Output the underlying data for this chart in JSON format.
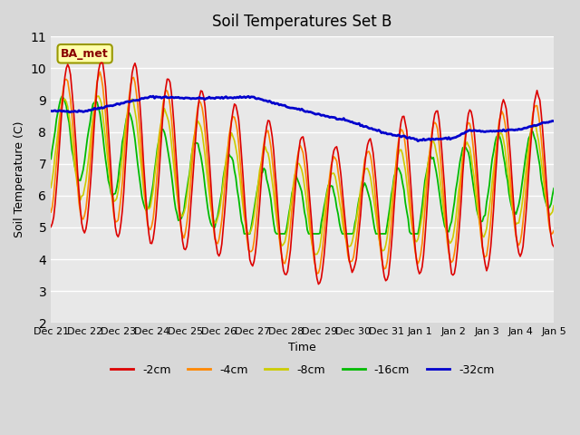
{
  "title": "Soil Temperatures Set B",
  "xlabel": "Time",
  "ylabel": "Soil Temperature (C)",
  "ylim": [
    2.0,
    11.0
  ],
  "yticks": [
    2.0,
    3.0,
    4.0,
    5.0,
    6.0,
    7.0,
    8.0,
    9.0,
    10.0,
    11.0
  ],
  "legend_label": "BA_met",
  "series_colors": {
    "-2cm": "#dd0000",
    "-4cm": "#ff8800",
    "-8cm": "#cccc00",
    "-16cm": "#00bb00",
    "-32cm": "#0000cc"
  },
  "x_labels": [
    "Dec 21",
    "Dec 22",
    "Dec 23",
    "Dec 24",
    "Dec 25",
    "Dec 26",
    "Dec 27",
    "Dec 28",
    "Dec 29",
    "Dec 30",
    "Dec 31",
    "Jan 1",
    "Jan 2",
    "Jan 3",
    "Jan 4",
    "Jan 5"
  ],
  "x_tick_positions": [
    0,
    1,
    2,
    3,
    4,
    5,
    6,
    7,
    8,
    9,
    10,
    11,
    12,
    13,
    14,
    15
  ]
}
